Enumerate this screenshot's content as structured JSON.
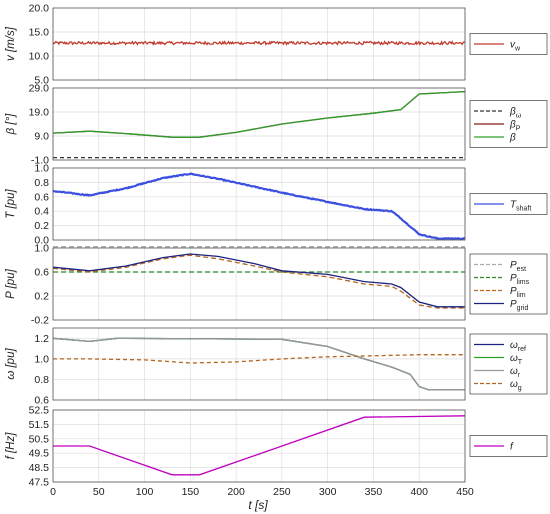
{
  "figure": {
    "xlabel": "t [s]",
    "xticks": [
      "0",
      "50",
      "100",
      "150",
      "200",
      "250",
      "300",
      "350",
      "400",
      "450"
    ]
  },
  "chart_data": [
    {
      "type": "line",
      "ylabel": "v [m/s]",
      "ylim": [
        5,
        20
      ],
      "yticks": [
        "20.0",
        "15.0",
        "10.0",
        "5.0"
      ],
      "grid": true,
      "legend": [
        {
          "name": "v",
          "sub": "w",
          "color": "#c0392b",
          "dash": "solid"
        }
      ],
      "series": [
        {
          "name": "v_w",
          "color": "#c0392b",
          "noise": 0.6,
          "t": [
            0,
            450
          ],
          "y": [
            12.7,
            12.7
          ]
        }
      ]
    },
    {
      "type": "line",
      "ylabel": "β [°]",
      "ylim": [
        -1,
        29
      ],
      "yticks": [
        "29.0",
        "19.0",
        "9.0",
        "-1.0"
      ],
      "grid": true,
      "legend": [
        {
          "name": "β",
          "sub": "ω",
          "color": "#333333",
          "dash": "dashed"
        },
        {
          "name": "β",
          "sub": "P",
          "color": "#8b1a1a",
          "dash": "solid"
        },
        {
          "name": "β",
          "sub": "",
          "color": "#2ca02c",
          "dash": "solid"
        }
      ],
      "series": [
        {
          "name": "β_ω",
          "color": "#333333",
          "dash": "4,3",
          "t": [
            0,
            450
          ],
          "y": [
            0,
            0
          ]
        },
        {
          "name": "β_P",
          "color": "#8b1a1a",
          "t": [
            0,
            40,
            80,
            130,
            160,
            200,
            250,
            300,
            350,
            380,
            400,
            450
          ],
          "y": [
            10.2,
            11.0,
            10.0,
            8.5,
            8.5,
            10.5,
            14.0,
            16.5,
            18.5,
            20.0,
            26.5,
            27.5
          ]
        },
        {
          "name": "β",
          "color": "#2ca02c",
          "t": [
            0,
            40,
            80,
            130,
            160,
            200,
            250,
            300,
            350,
            380,
            400,
            450
          ],
          "y": [
            10.2,
            11.0,
            10.0,
            8.5,
            8.5,
            10.5,
            14.0,
            16.5,
            18.5,
            20.0,
            26.5,
            27.5
          ]
        }
      ]
    },
    {
      "type": "line",
      "ylabel": "T [pu]",
      "ylim": [
        0,
        1
      ],
      "yticks": [
        "1.0",
        "0.8",
        "0.6",
        "0.4",
        "0.2",
        "0.0"
      ],
      "grid": true,
      "legend": [
        {
          "name": "T",
          "sub": "shaft",
          "color": "#3b4fe0",
          "dash": "solid"
        }
      ],
      "series": [
        {
          "name": "T_shaft",
          "color": "#3b4fe0",
          "noise": 0.012,
          "width": 2.2,
          "t": [
            0,
            40,
            80,
            120,
            150,
            180,
            220,
            260,
            300,
            340,
            370,
            380,
            400,
            420,
            450
          ],
          "y": [
            0.68,
            0.62,
            0.72,
            0.86,
            0.92,
            0.85,
            0.74,
            0.63,
            0.53,
            0.43,
            0.4,
            0.3,
            0.08,
            0.02,
            0.02
          ]
        }
      ]
    },
    {
      "type": "line",
      "ylabel": "P [pu]",
      "ylim": [
        -0.2,
        1.0
      ],
      "yticks": [
        "1.0",
        "0.6",
        "0.2",
        "-0.2"
      ],
      "grid": true,
      "legend": [
        {
          "name": "P",
          "sub": "est",
          "color": "#aaaaaa",
          "dash": "dashed"
        },
        {
          "name": "P",
          "sub": "lims",
          "color": "#2a8a2a",
          "dash": "dashed"
        },
        {
          "name": "P",
          "sub": "lim",
          "color": "#b5651d",
          "dash": "dashed"
        },
        {
          "name": "P",
          "sub": "grid",
          "color": "#1a237e",
          "dash": "solid"
        }
      ],
      "series": [
        {
          "name": "P_est",
          "color": "#aaaaaa",
          "dash": "5,3",
          "t": [
            0,
            450
          ],
          "y": [
            1.02,
            1.02
          ]
        },
        {
          "name": "P_lims",
          "color": "#2a8a2a",
          "dash": "5,3",
          "t": [
            0,
            450
          ],
          "y": [
            0.6,
            0.6
          ]
        },
        {
          "name": "P_lim",
          "color": "#b5651d",
          "dash": "5,3",
          "t": [
            0,
            40,
            80,
            120,
            150,
            180,
            220,
            250,
            300,
            340,
            370,
            380,
            400,
            420,
            450
          ],
          "y": [
            0.66,
            0.6,
            0.68,
            0.82,
            0.88,
            0.82,
            0.7,
            0.6,
            0.52,
            0.4,
            0.36,
            0.28,
            0.05,
            0.0,
            0.0
          ]
        },
        {
          "name": "P_grid",
          "color": "#1a237e",
          "t": [
            0,
            40,
            80,
            120,
            150,
            180,
            220,
            250,
            300,
            340,
            370,
            380,
            400,
            420,
            450
          ],
          "y": [
            0.68,
            0.62,
            0.7,
            0.84,
            0.9,
            0.86,
            0.74,
            0.62,
            0.56,
            0.44,
            0.4,
            0.34,
            0.1,
            0.02,
            0.02
          ]
        }
      ]
    },
    {
      "type": "line",
      "ylabel": "ω [pu]",
      "ylim": [
        0.6,
        1.3
      ],
      "yticks": [
        "1.2",
        "1.0",
        "0.8",
        "0.6"
      ],
      "grid": true,
      "legend": [
        {
          "name": "ω",
          "sub": "ref",
          "color": "#1a237e",
          "dash": "solid"
        },
        {
          "name": "ω",
          "sub": "T",
          "color": "#2ca02c",
          "dash": "solid"
        },
        {
          "name": "ω",
          "sub": "r",
          "color": "#999999",
          "dash": "solid"
        },
        {
          "name": "ω",
          "sub": "g",
          "color": "#b5651d",
          "dash": "dashed"
        }
      ],
      "series": [
        {
          "name": "ω_ref",
          "color": "#1a237e",
          "t": [
            0,
            40,
            70,
            250,
            300,
            340,
            370,
            390,
            400,
            410,
            450
          ],
          "y": [
            1.2,
            1.17,
            1.2,
            1.19,
            1.12,
            1.0,
            0.92,
            0.85,
            0.73,
            0.7,
            0.7
          ]
        },
        {
          "name": "ω_T",
          "color": "#2ca02c",
          "t": [
            0,
            40,
            70,
            250,
            300,
            340,
            370,
            390,
            400,
            410,
            450
          ],
          "y": [
            1.2,
            1.17,
            1.2,
            1.19,
            1.12,
            1.0,
            0.92,
            0.85,
            0.73,
            0.7,
            0.7
          ]
        },
        {
          "name": "ω_r",
          "color": "#999999",
          "t": [
            0,
            40,
            70,
            250,
            300,
            340,
            370,
            390,
            400,
            410,
            450
          ],
          "y": [
            1.2,
            1.17,
            1.2,
            1.19,
            1.12,
            1.0,
            0.92,
            0.85,
            0.73,
            0.7,
            0.7
          ]
        },
        {
          "name": "ω_g",
          "color": "#b5651d",
          "dash": "4,3",
          "t": [
            0,
            40,
            100,
            150,
            200,
            250,
            300,
            350,
            400,
            450
          ],
          "y": [
            1.0,
            1.0,
            0.99,
            0.96,
            0.97,
            1.0,
            1.02,
            1.03,
            1.04,
            1.04
          ]
        }
      ]
    },
    {
      "type": "line",
      "ylabel": "f [Hz]",
      "ylim": [
        47.5,
        52.5
      ],
      "yticks": [
        "52.5",
        "51.5",
        "50.5",
        "49.5",
        "48.5",
        "47.5"
      ],
      "grid": true,
      "legend": [
        {
          "name": "f",
          "sub": "",
          "color": "#c000c0",
          "dash": "solid"
        }
      ],
      "series": [
        {
          "name": "f",
          "color": "#c000c0",
          "t": [
            0,
            40,
            130,
            160,
            340,
            450
          ],
          "y": [
            50.0,
            50.0,
            48.0,
            48.0,
            52.0,
            52.1
          ]
        }
      ]
    }
  ]
}
